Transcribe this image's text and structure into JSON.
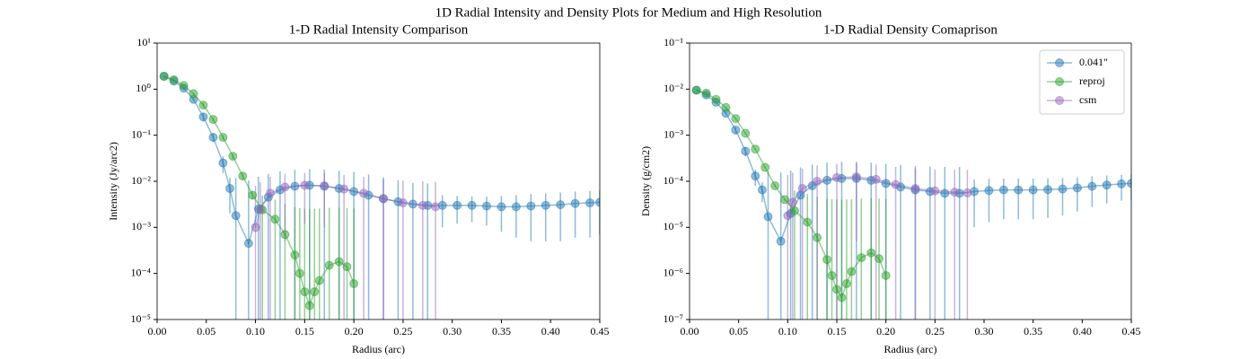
{
  "title": "1D Radial Intensity and Density Plots for Medium and High Resolution",
  "chart_data": [
    {
      "type": "line",
      "title": "1-D Radial Intensity Comparison",
      "xlabel": "Radius (arc)",
      "ylabel": "Intensity (Jy/arc2)",
      "xlim": [
        0,
        0.45
      ],
      "ylim": [
        1e-05,
        10
      ],
      "yscale": "log",
      "legend": false,
      "xticks": [
        {
          "value": 0,
          "label": "0.00"
        },
        {
          "value": 0.05,
          "label": "0.05"
        },
        {
          "value": 0.1,
          "label": "0.10"
        },
        {
          "value": 0.15,
          "label": "0.15"
        },
        {
          "value": 0.2,
          "label": "0.20"
        },
        {
          "value": 0.25,
          "label": "0.25"
        },
        {
          "value": 0.3,
          "label": "0.30"
        },
        {
          "value": 0.35,
          "label": "0.35"
        },
        {
          "value": 0.4,
          "label": "0.40"
        },
        {
          "value": 0.45,
          "label": "0.45"
        }
      ],
      "yticks": [
        {
          "value": 1e-05,
          "label": "10⁻⁵"
        },
        {
          "value": 0.0001,
          "label": "10⁻⁴"
        },
        {
          "value": 0.001,
          "label": "10⁻³"
        },
        {
          "value": 0.01,
          "label": "10⁻²"
        },
        {
          "value": 0.1,
          "label": "10⁻¹"
        },
        {
          "value": 1,
          "label": "10⁰"
        },
        {
          "value": 10,
          "label": "10¹"
        }
      ],
      "series": [
        {
          "name": "0.041\"",
          "color": "#1f77b4",
          "x": [
            0.007,
            0.017,
            0.027,
            0.037,
            0.047,
            0.057,
            0.067,
            0.074,
            0.08,
            0.093,
            0.103,
            0.113,
            0.125,
            0.14,
            0.155,
            0.17,
            0.185,
            0.2,
            0.215,
            0.23,
            0.245,
            0.26,
            0.275,
            0.29,
            0.305,
            0.32,
            0.335,
            0.35,
            0.365,
            0.38,
            0.395,
            0.41,
            0.425,
            0.44,
            0.45
          ],
          "values": [
            1.9,
            1.5,
            1.05,
            0.6,
            0.25,
            0.09,
            0.025,
            0.007,
            0.0018,
            0.00045,
            0.0025,
            0.0045,
            0.0065,
            0.0078,
            0.0082,
            0.0078,
            0.007,
            0.006,
            0.005,
            0.0042,
            0.0036,
            0.0032,
            0.003,
            0.003,
            0.003,
            0.003,
            0.0029,
            0.0028,
            0.0028,
            0.0029,
            0.003,
            0.0031,
            0.0033,
            0.0034,
            0.0035
          ],
          "errors": [
            0.05,
            0.05,
            0.05,
            0.05,
            0.05,
            0.02,
            0.01,
            0.005,
            0.01,
            0.01,
            0.01,
            0.01,
            0.01,
            0.01,
            0.01,
            0.01,
            0.01,
            0.01,
            0.009,
            0.008,
            0.007,
            0.006,
            0.006,
            0.002,
            0.0018,
            0.0017,
            0.0018,
            0.002,
            0.0022,
            0.0024,
            0.0025,
            0.0026,
            0.0027,
            0.0028,
            0.0028
          ]
        },
        {
          "name": "reproj",
          "color": "#2ca02c",
          "x": [
            0.007,
            0.017,
            0.027,
            0.037,
            0.047,
            0.057,
            0.067,
            0.077,
            0.087,
            0.097,
            0.107,
            0.12,
            0.13,
            0.14,
            0.145,
            0.15,
            0.155,
            0.16,
            0.165,
            0.175,
            0.185,
            0.193,
            0.2
          ],
          "values": [
            1.9,
            1.6,
            1.2,
            0.8,
            0.45,
            0.22,
            0.09,
            0.035,
            0.013,
            0.005,
            0.0024,
            0.0015,
            0.0007,
            0.00025,
            0.0001,
            4e-05,
            2e-05,
            4e-05,
            7e-05,
            0.00015,
            0.00018,
            0.00014,
            6e-05
          ],
          "errors": [
            0.05,
            0.05,
            0.05,
            0.05,
            0.05,
            0.02,
            0.01,
            0.005,
            0.002,
            0.001,
            0.0025,
            0.0025,
            0.0025,
            0.0025,
            0.0025,
            0.0025,
            0.0025,
            0.0025,
            0.0025,
            0.0025,
            0.0025,
            0.0025,
            0.0025
          ]
        },
        {
          "name": "csm",
          "color": "#9467bd",
          "x": [
            0.1,
            0.105,
            0.115,
            0.13,
            0.15,
            0.17,
            0.19,
            0.21,
            0.23,
            0.25,
            0.27,
            0.283
          ],
          "values": [
            0.001,
            0.0025,
            0.0055,
            0.0075,
            0.0082,
            0.008,
            0.0068,
            0.0055,
            0.0042,
            0.0034,
            0.003,
            0.0028
          ],
          "errors": [
            0.007,
            0.007,
            0.007,
            0.007,
            0.007,
            0.007,
            0.007,
            0.007,
            0.007,
            0.007,
            0.007,
            0.007
          ]
        }
      ]
    },
    {
      "type": "line",
      "title": "1-D Radial Density Comaprison",
      "xlabel": "Radius (arc)",
      "ylabel": "Density (g/cm2)",
      "xlim": [
        0,
        0.45
      ],
      "ylim": [
        1e-07,
        0.1
      ],
      "yscale": "log",
      "legend": "upper right",
      "xticks": [
        {
          "value": 0,
          "label": "0.00"
        },
        {
          "value": 0.05,
          "label": "0.05"
        },
        {
          "value": 0.1,
          "label": "0.10"
        },
        {
          "value": 0.15,
          "label": "0.15"
        },
        {
          "value": 0.2,
          "label": "0.20"
        },
        {
          "value": 0.25,
          "label": "0.25"
        },
        {
          "value": 0.3,
          "label": "0.30"
        },
        {
          "value": 0.35,
          "label": "0.35"
        },
        {
          "value": 0.4,
          "label": "0.40"
        },
        {
          "value": 0.45,
          "label": "0.45"
        }
      ],
      "yticks": [
        {
          "value": 1e-07,
          "label": "10⁻⁷"
        },
        {
          "value": 1e-06,
          "label": "10⁻⁶"
        },
        {
          "value": 1e-05,
          "label": "10⁻⁵"
        },
        {
          "value": 0.0001,
          "label": "10⁻⁴"
        },
        {
          "value": 0.001,
          "label": "10⁻³"
        },
        {
          "value": 0.01,
          "label": "10⁻²"
        },
        {
          "value": 0.1,
          "label": "10⁻¹"
        }
      ],
      "series": [
        {
          "name": "0.041\"",
          "color": "#1f77b4",
          "x": [
            0.007,
            0.017,
            0.027,
            0.037,
            0.047,
            0.057,
            0.067,
            0.074,
            0.08,
            0.093,
            0.103,
            0.113,
            0.125,
            0.14,
            0.155,
            0.17,
            0.185,
            0.2,
            0.215,
            0.23,
            0.245,
            0.26,
            0.275,
            0.29,
            0.305,
            0.32,
            0.335,
            0.35,
            0.365,
            0.38,
            0.395,
            0.41,
            0.425,
            0.44,
            0.45
          ],
          "values": [
            0.0095,
            0.0075,
            0.0052,
            0.003,
            0.0013,
            0.00045,
            0.00013,
            6.5e-05,
            1.7e-05,
            5e-06,
            2e-05,
            5e-05,
            8e-05,
            0.000105,
            0.000115,
            0.000115,
            0.000105,
            9e-05,
            7.5e-05,
            6.5e-05,
            6e-05,
            5.5e-05,
            5.5e-05,
            6e-05,
            6.3e-05,
            6.5e-05,
            6.5e-05,
            6.5e-05,
            6.6e-05,
            6.8e-05,
            7.2e-05,
            7.8e-05,
            8.3e-05,
            8.8e-05,
            9e-05
          ],
          "errors": [
            0.0002,
            0.0002,
            0.0002,
            0.0002,
            0.0002,
            0.0001,
            5e-05,
            3e-05,
            0.00015,
            0.00015,
            0.00015,
            0.00015,
            0.00015,
            0.00015,
            0.00015,
            0.00015,
            0.00015,
            0.00015,
            0.00015,
            0.00015,
            0.00015,
            0.00015,
            0.00015,
            5e-05,
            5e-05,
            5e-05,
            5e-05,
            5e-05,
            5e-05,
            5e-05,
            5e-05,
            5e-05,
            5e-05,
            5e-05,
            5e-05
          ]
        },
        {
          "name": "reproj",
          "color": "#2ca02c",
          "x": [
            0.007,
            0.017,
            0.027,
            0.037,
            0.047,
            0.057,
            0.067,
            0.077,
            0.087,
            0.097,
            0.107,
            0.12,
            0.13,
            0.14,
            0.145,
            0.15,
            0.155,
            0.16,
            0.165,
            0.175,
            0.185,
            0.193,
            0.2
          ],
          "values": [
            0.0095,
            0.0082,
            0.006,
            0.004,
            0.0023,
            0.0011,
            0.0005,
            0.0002,
            8e-05,
            4e-05,
            2.3e-05,
            1.3e-05,
            6e-06,
            2e-06,
            9e-07,
            4.5e-07,
            3e-07,
            6e-07,
            1.1e-06,
            2.2e-06,
            2.8e-06,
            2.1e-06,
            9e-07
          ],
          "errors": [
            0.0002,
            0.0002,
            0.0002,
            0.0002,
            0.0001,
            5e-05,
            2e-05,
            1e-05,
            5e-06,
            3e-06,
            4e-05,
            4e-05,
            4e-05,
            4e-05,
            4e-05,
            4e-05,
            4e-05,
            4e-05,
            4e-05,
            4e-05,
            4e-05,
            4e-05,
            4e-05
          ]
        },
        {
          "name": "csm",
          "color": "#9467bd",
          "x": [
            0.1,
            0.105,
            0.115,
            0.13,
            0.15,
            0.17,
            0.19,
            0.21,
            0.23,
            0.25,
            0.27,
            0.283
          ],
          "values": [
            1.8e-05,
            3.5e-05,
            7e-05,
            0.0001,
            0.00012,
            0.000125,
            0.00011,
            8.5e-05,
            7e-05,
            6.2e-05,
            5.8e-05,
            5.6e-05
          ],
          "errors": [
            0.00012,
            0.00012,
            0.00012,
            0.00012,
            0.00012,
            0.00012,
            0.00012,
            0.00012,
            0.00012,
            0.00012,
            0.00012,
            0.00012
          ]
        }
      ]
    }
  ]
}
